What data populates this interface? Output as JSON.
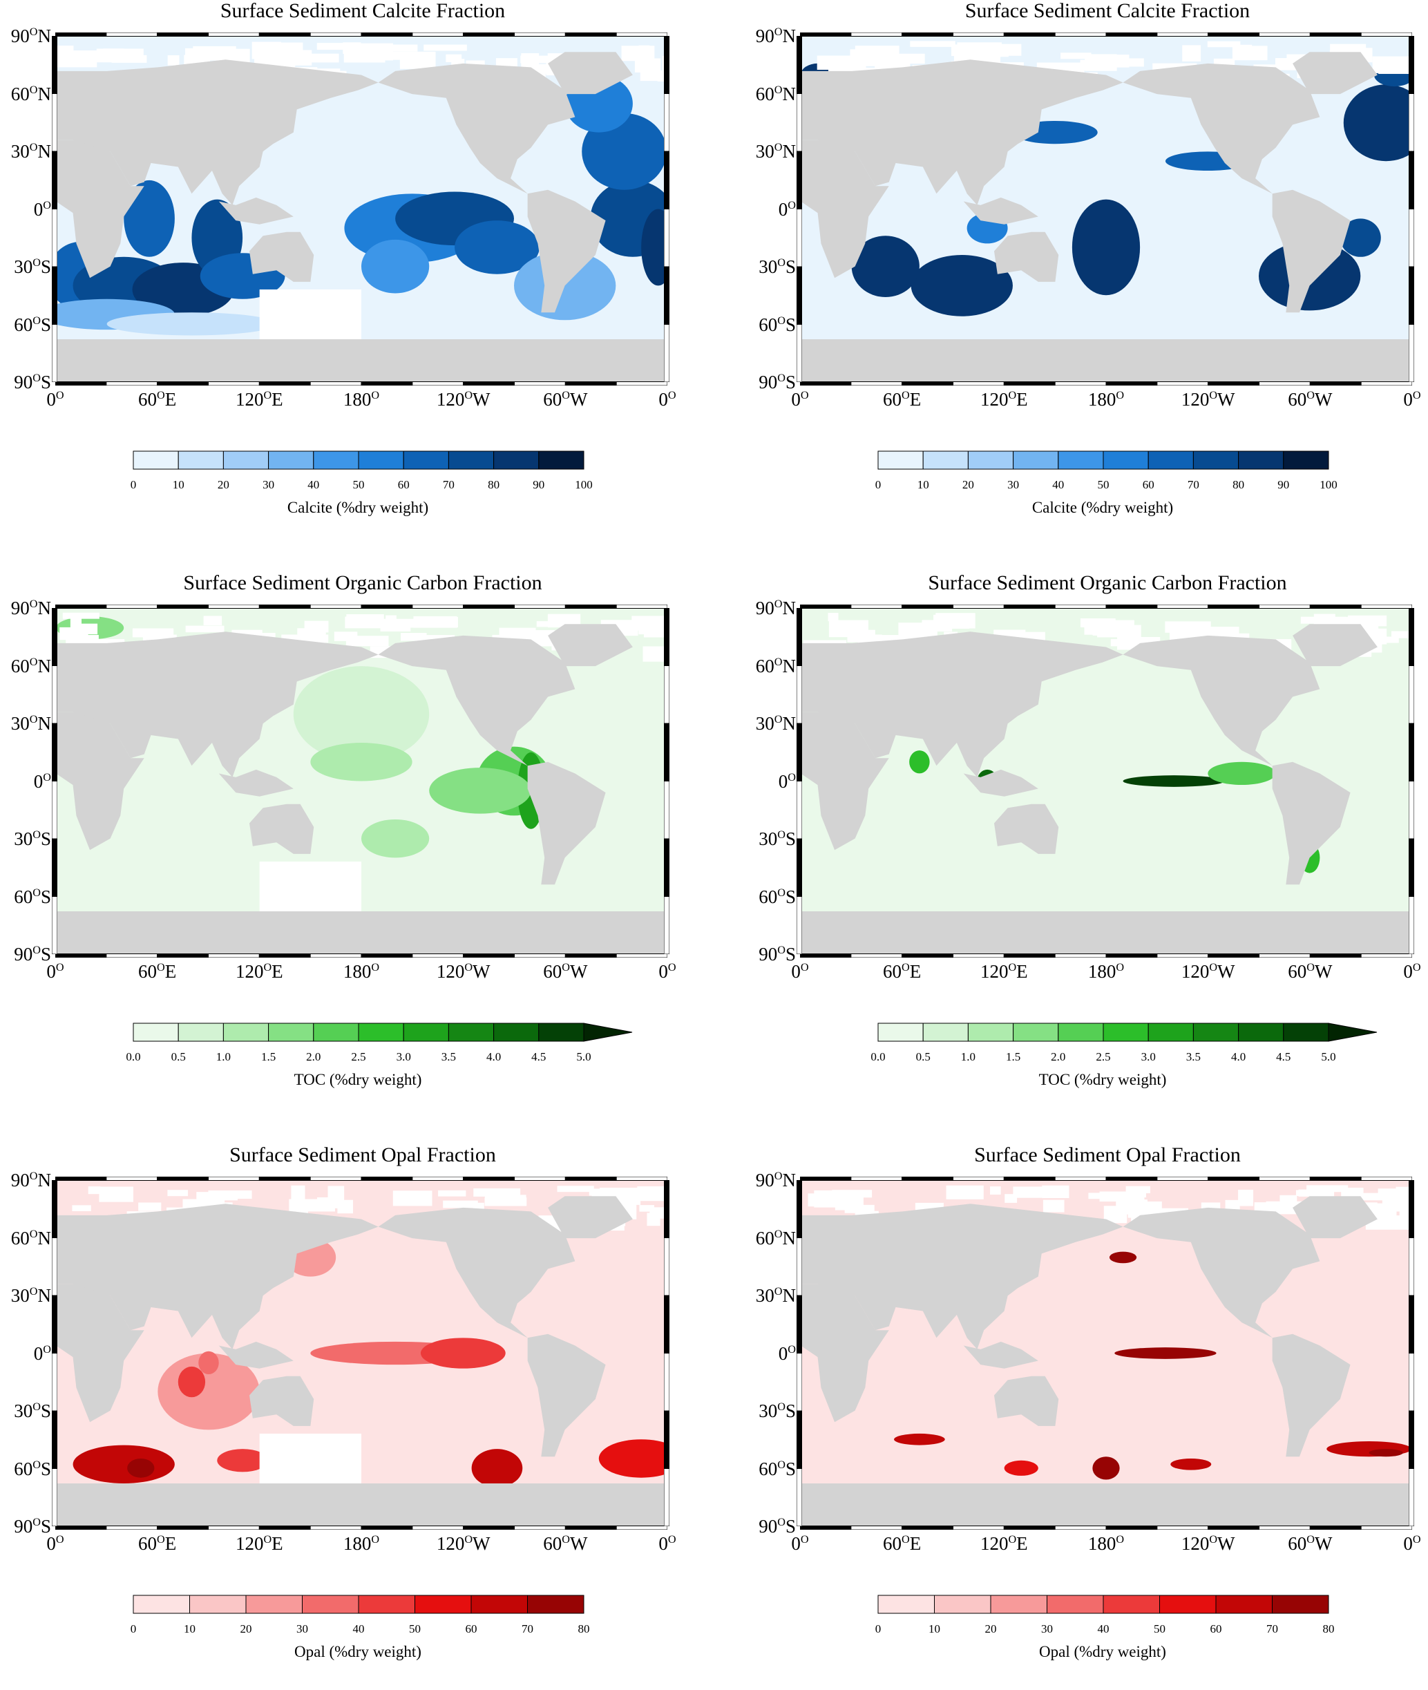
{
  "panels": [
    {
      "title": "Surface Sediment Calcite Fraction",
      "colorbar": "calcite",
      "pattern": "calcite-a"
    },
    {
      "title": "Surface Sediment Calcite Fraction",
      "colorbar": "calcite",
      "pattern": "calcite-b"
    },
    {
      "title": "Surface Sediment Organic Carbon Fraction",
      "colorbar": "toc",
      "pattern": "toc-a"
    },
    {
      "title": "Surface Sediment Organic Carbon Fraction",
      "colorbar": "toc",
      "pattern": "toc-b"
    },
    {
      "title": "Surface Sediment Opal Fraction",
      "colorbar": "opal",
      "pattern": "opal-a"
    },
    {
      "title": "Surface Sediment Opal Fraction",
      "colorbar": "opal",
      "pattern": "opal-b"
    }
  ],
  "lat_ticks": [
    {
      "deg": "90",
      "hemi": "N",
      "lat": 90
    },
    {
      "deg": "60",
      "hemi": "N",
      "lat": 60
    },
    {
      "deg": "30",
      "hemi": "N",
      "lat": 30
    },
    {
      "deg": "0",
      "hemi": "",
      "lat": 0
    },
    {
      "deg": "30",
      "hemi": "S",
      "lat": -30
    },
    {
      "deg": "60",
      "hemi": "S",
      "lat": -60
    },
    {
      "deg": "90",
      "hemi": "S",
      "lat": -90
    }
  ],
  "lon_ticks": [
    {
      "deg": "0",
      "hemi": "",
      "lon": 0
    },
    {
      "deg": "60",
      "hemi": "E",
      "lon": 60
    },
    {
      "deg": "120",
      "hemi": "E",
      "lon": 120
    },
    {
      "deg": "180",
      "hemi": "",
      "lon": 180
    },
    {
      "deg": "120",
      "hemi": "W",
      "lon": 240
    },
    {
      "deg": "60",
      "hemi": "W",
      "lon": 300
    },
    {
      "deg": "0",
      "hemi": "",
      "lon": 360
    }
  ],
  "colorbars": {
    "calcite": {
      "label": "Calcite (%dry weight)",
      "ticks": [
        "0",
        "10",
        "20",
        "30",
        "40",
        "50",
        "60",
        "70",
        "80",
        "90",
        "100"
      ],
      "colors": [
        "#e8f4fd",
        "#c6e2fb",
        "#a1cdf7",
        "#72b4f1",
        "#3d96e8",
        "#1f7fd8",
        "#0e62b5",
        "#074b91",
        "#063670",
        "#021a3c"
      ],
      "extend_arrow": false
    },
    "toc": {
      "label": "TOC (%dry weight)",
      "ticks": [
        "0.0",
        "0.5",
        "1.0",
        "1.5",
        "2.0",
        "2.5",
        "3.0",
        "3.5",
        "4.0",
        "4.5",
        "5.0"
      ],
      "colors": [
        "#eaf9ea",
        "#d3f3d3",
        "#aeebad",
        "#85e084",
        "#55cf54",
        "#2cbe2a",
        "#1ea31c",
        "#158614",
        "#0b690c",
        "#044106"
      ],
      "extend_arrow": true,
      "arrow_color": "#022402"
    },
    "opal": {
      "label": "Opal (%dry weight)",
      "ticks": [
        "0",
        "10",
        "20",
        "30",
        "40",
        "50",
        "60",
        "70",
        "80"
      ],
      "colors": [
        "#fde3e3",
        "#fac6c6",
        "#f79a9a",
        "#f26b6b",
        "#ec3a3a",
        "#e50f0f",
        "#c20606",
        "#970404"
      ],
      "extend_arrow": false
    }
  },
  "map_colors": {
    "land": "#d3d3d3",
    "no_data": "#ffffff"
  }
}
